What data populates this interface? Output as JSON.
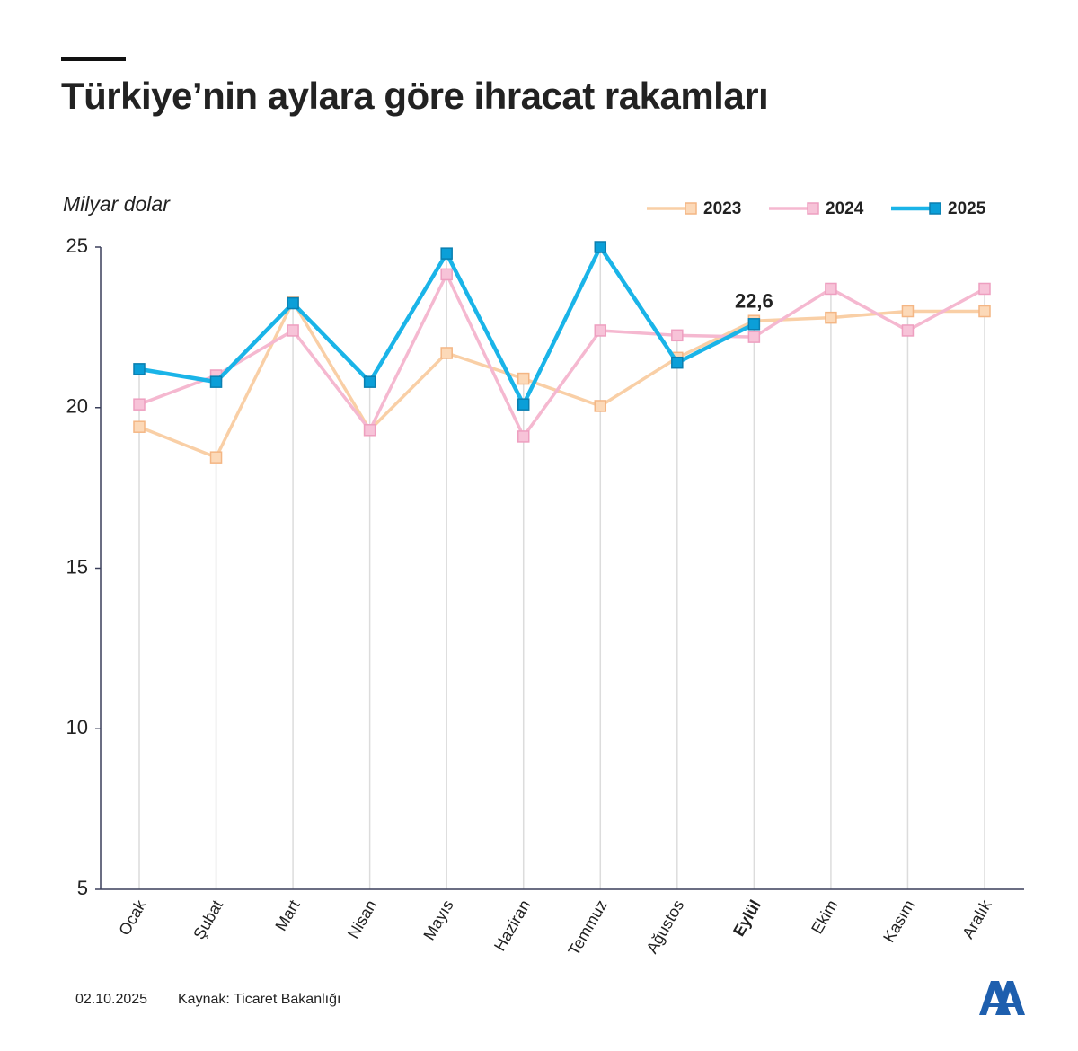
{
  "chart_data": {
    "type": "line",
    "title": "Türkiye’nin aylara göre ihracat rakamları",
    "y_label": "Milyar dolar",
    "categories": [
      "Ocak",
      "Şubat",
      "Mart",
      "Nisan",
      "Mayıs",
      "Haziran",
      "Temmuz",
      "Ağustos",
      "Eylül",
      "Ekim",
      "Kasım",
      "Aralık"
    ],
    "bold_category": "Eylül",
    "series": [
      {
        "name": "2023",
        "color": "#f9cfa6",
        "values": [
          19.4,
          18.45,
          23.3,
          19.3,
          21.7,
          20.9,
          20.05,
          21.55,
          22.7,
          22.8,
          23.0,
          23.0
        ]
      },
      {
        "name": "2024",
        "color": "#f5b8d0",
        "values": [
          20.1,
          21.0,
          22.4,
          19.3,
          24.15,
          19.1,
          22.4,
          22.25,
          22.2,
          23.7,
          22.4,
          23.7
        ]
      },
      {
        "name": "2025",
        "color": "#1ab4e8",
        "values": [
          21.2,
          20.8,
          23.25,
          20.8,
          24.8,
          20.1,
          25.0,
          21.4,
          22.6,
          null,
          null,
          null
        ],
        "value_labels": [
          null,
          null,
          null,
          null,
          null,
          null,
          null,
          null,
          "22,6",
          null,
          null,
          null
        ]
      }
    ],
    "ylim": [
      5,
      25
    ],
    "yticks": [
      5,
      10,
      15,
      20,
      25
    ],
    "legend": "top-right",
    "date": "02.10.2025",
    "source": "Kaynak: Ticaret Bakanlığı"
  }
}
